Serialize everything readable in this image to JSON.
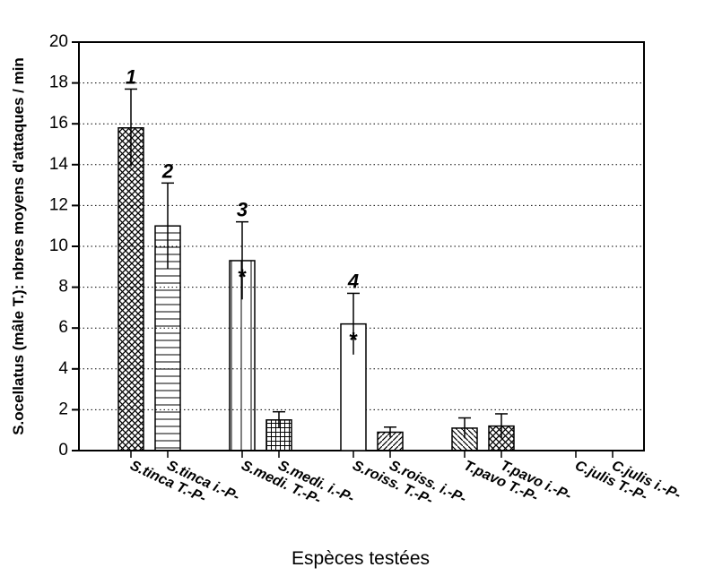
{
  "chart_data": {
    "type": "bar",
    "ylabel": "S.ocellatus (mâle T.): nbres moyens d'attaques / min",
    "xlabel": "Espèces testées",
    "categories": [
      "S.tinca T.-P-",
      "S.tinca i.-P-",
      "S.medi. T.-P-",
      "S.medi. i.-P-",
      "S.roiss. T.-P-",
      "S.roiss. i.-P-",
      "T.pavo T.-P-",
      "T.pavo i.-P-",
      "C.julis T.-P-",
      "C.julis i.-P-"
    ],
    "values": [
      15.8,
      11.0,
      9.3,
      1.5,
      6.2,
      0.9,
      1.1,
      1.2,
      0,
      0
    ],
    "errors": [
      1.9,
      2.1,
      1.9,
      0.4,
      1.5,
      0.25,
      0.5,
      0.6,
      0,
      0
    ],
    "annotations": [
      "1",
      "2",
      "3",
      null,
      "4",
      null,
      null,
      null,
      null,
      null
    ],
    "significance": [
      null,
      null,
      "*",
      null,
      "*",
      null,
      null,
      null,
      null,
      null
    ],
    "patterns": [
      "crosshatch",
      "horizontal",
      "vertical",
      "grid",
      "none",
      "diagonal",
      "backdiagonal",
      "crosshatch",
      "none",
      "none"
    ],
    "color": "#000000",
    "ylim": [
      0,
      20
    ],
    "yticks": [
      0,
      2,
      4,
      6,
      8,
      10,
      12,
      14,
      16,
      18,
      20
    ],
    "grid": true
  }
}
